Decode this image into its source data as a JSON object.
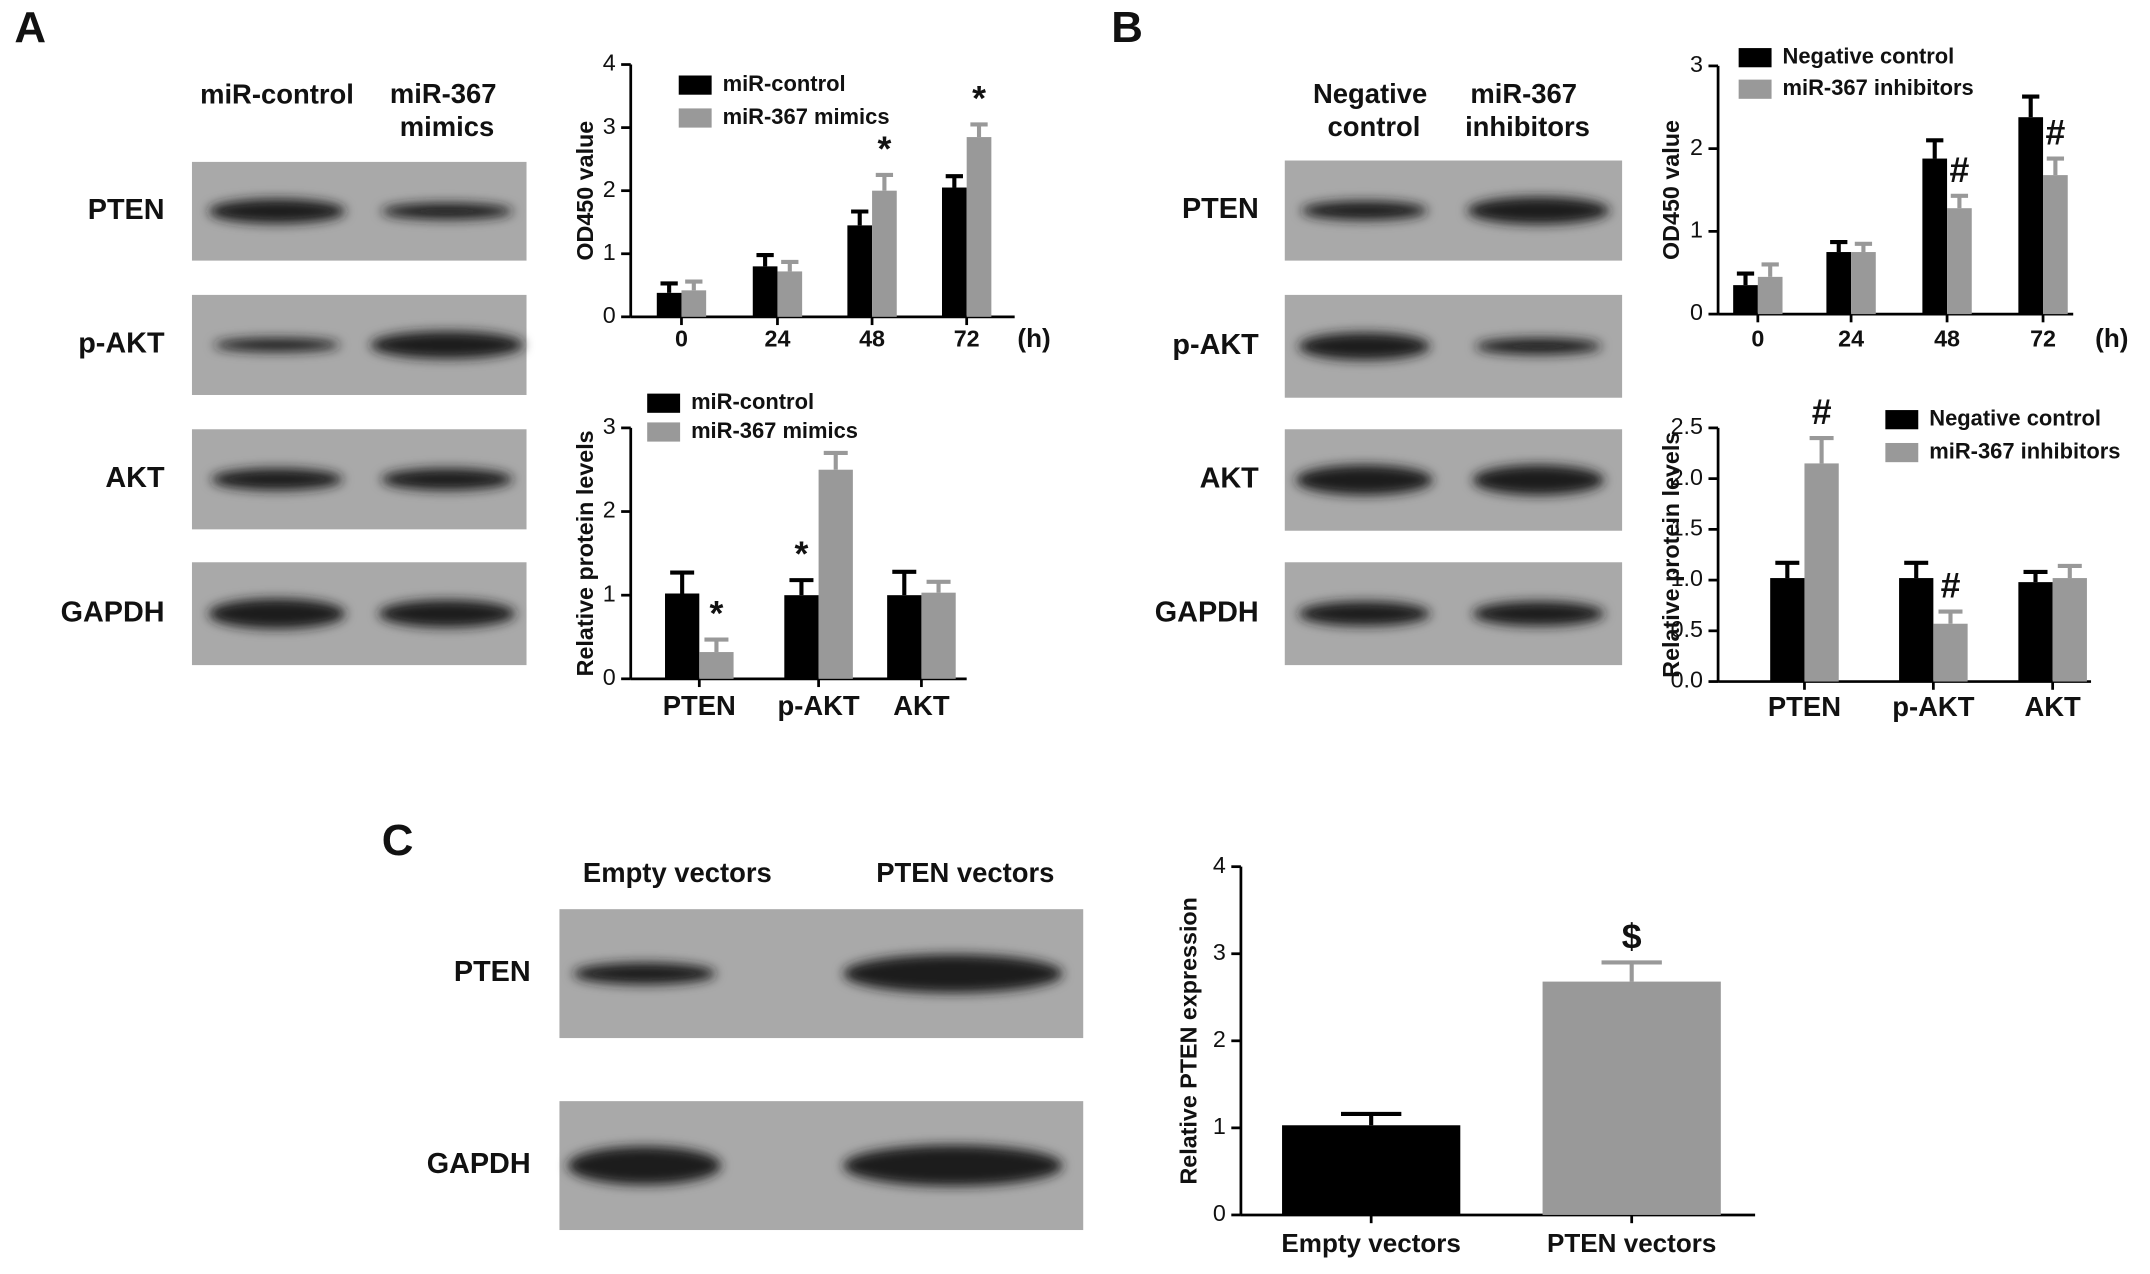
{
  "figure": {
    "panel_labels": [
      "A",
      "B",
      "C"
    ],
    "blots": [
      {
        "lanes": [
          "miR-control",
          "miR-367 mimics"
        ],
        "rows": [
          "PTEN",
          "p-AKT",
          "AKT",
          "GAPDH"
        ]
      },
      {
        "lanes": [
          "Negative control",
          "miR-367 inhibitors"
        ],
        "rows": [
          "PTEN",
          "p-AKT",
          "AKT",
          "GAPDH"
        ]
      },
      {
        "lanes": [
          "Empty vectors",
          "PTEN vectors"
        ],
        "rows": [
          "PTEN",
          "GAPDH"
        ]
      }
    ]
  },
  "chart_data": [
    {
      "type": "bar",
      "ylabel": "OD450 value",
      "xlabel": "(h)",
      "categories": [
        "0",
        "24",
        "48",
        "72"
      ],
      "ylim": [
        0,
        4
      ],
      "yticks": [
        0,
        1,
        2,
        3,
        4
      ],
      "series": [
        {
          "name": "miR-control",
          "color": "#000000",
          "values": [
            0.38,
            0.8,
            1.45,
            2.05
          ],
          "errors": [
            0.15,
            0.18,
            0.22,
            0.18
          ],
          "annotations": [
            null,
            null,
            null,
            null
          ]
        },
        {
          "name": "miR-367 mimics",
          "color": "#999999",
          "values": [
            0.42,
            0.72,
            2.0,
            2.85
          ],
          "errors": [
            0.14,
            0.15,
            0.25,
            0.2
          ],
          "annotations": [
            null,
            null,
            "*",
            "*"
          ]
        }
      ]
    },
    {
      "type": "bar",
      "ylabel": "Relative protein levels",
      "categories": [
        "PTEN",
        "p-AKT",
        "AKT"
      ],
      "ylim": [
        0,
        3
      ],
      "yticks": [
        0,
        1,
        2,
        3
      ],
      "series": [
        {
          "name": "miR-control",
          "color": "#000000",
          "values": [
            1.02,
            1.0,
            1.0
          ],
          "errors": [
            0.25,
            0.18,
            0.28
          ],
          "annotations": [
            null,
            "*",
            null
          ]
        },
        {
          "name": "miR-367 mimics",
          "color": "#999999",
          "values": [
            0.32,
            2.5,
            1.03
          ],
          "errors": [
            0.15,
            0.2,
            0.13
          ],
          "annotations": [
            "*",
            null,
            null
          ]
        }
      ]
    },
    {
      "type": "bar",
      "ylabel": "OD450 value",
      "xlabel": "(h)",
      "categories": [
        "0",
        "24",
        "48",
        "72"
      ],
      "ylim": [
        0,
        3
      ],
      "yticks": [
        0,
        1,
        2,
        3
      ],
      "series": [
        {
          "name": "Negative control",
          "color": "#000000",
          "values": [
            0.35,
            0.75,
            1.88,
            2.38
          ],
          "errors": [
            0.14,
            0.12,
            0.22,
            0.25
          ],
          "annotations": [
            null,
            null,
            null,
            null
          ]
        },
        {
          "name": "miR-367 inhibitors",
          "color": "#999999",
          "values": [
            0.45,
            0.75,
            1.28,
            1.68
          ],
          "errors": [
            0.15,
            0.1,
            0.15,
            0.2
          ],
          "annotations": [
            null,
            null,
            "#",
            "#"
          ]
        }
      ]
    },
    {
      "type": "bar",
      "ylabel": "Relative protein levels",
      "categories": [
        "PTEN",
        "p-AKT",
        "AKT"
      ],
      "ylim": [
        0,
        2.5
      ],
      "yticks": [
        {
          "value": 0,
          "label": "0.0"
        },
        0.5,
        {
          "value": 1,
          "label": "1.0"
        },
        1.5,
        {
          "value": 2,
          "label": "2.0"
        },
        2.5
      ],
      "series": [
        {
          "name": "Negative control",
          "color": "#000000",
          "values": [
            1.02,
            1.02,
            0.98
          ],
          "errors": [
            0.15,
            0.15,
            0.1
          ],
          "annotations": [
            null,
            null,
            null
          ]
        },
        {
          "name": "miR-367 inhibitors",
          "color": "#999999",
          "values": [
            2.15,
            0.57,
            1.02
          ],
          "errors": [
            0.25,
            0.12,
            0.12
          ],
          "annotations": [
            "#",
            "#",
            null
          ]
        }
      ]
    },
    {
      "type": "bar",
      "ylabel": "Relative PTEN expression",
      "categories": [
        "Empty vectors",
        "PTEN vectors"
      ],
      "ylim": [
        0,
        4
      ],
      "yticks": [
        0,
        1,
        2,
        3,
        4
      ],
      "values": [
        1.03,
        2.68
      ],
      "errors": [
        0.13,
        0.22
      ],
      "colors": [
        "#000000",
        "#999999"
      ],
      "annotations": [
        null,
        "$"
      ]
    }
  ]
}
